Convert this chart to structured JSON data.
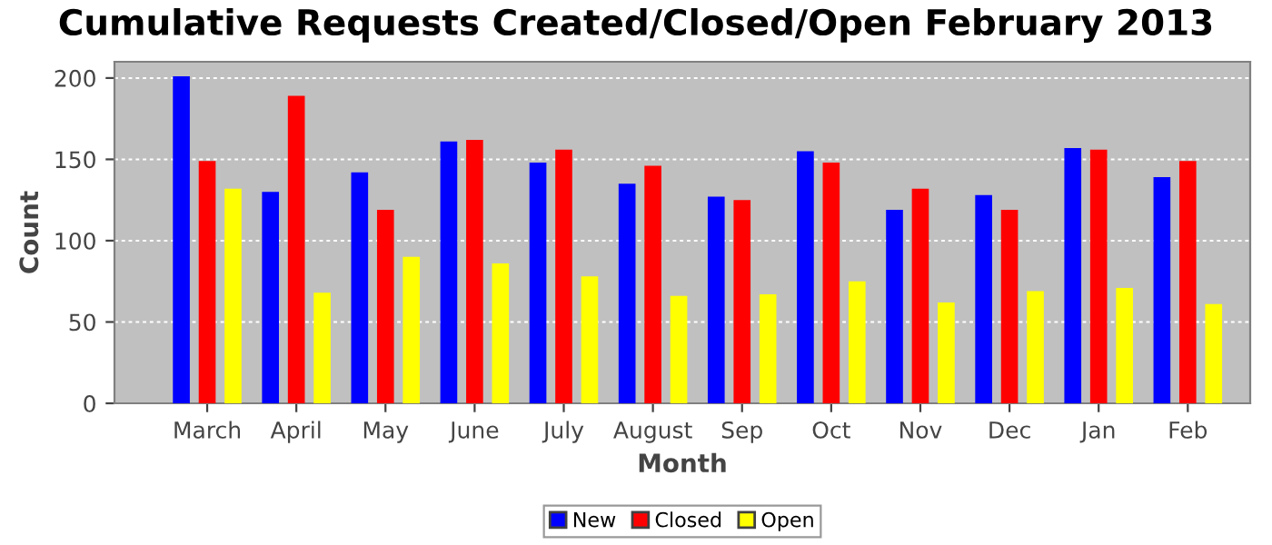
{
  "chart_data": {
    "type": "bar",
    "title": "Cumulative Requests Created/Closed/Open February 2013",
    "xlabel": "Month",
    "ylabel": "Count",
    "categories": [
      "March",
      "April",
      "May",
      "June",
      "July",
      "August",
      "Sep",
      "Oct",
      "Nov",
      "Dec",
      "Jan",
      "Feb"
    ],
    "series": [
      {
        "name": "New",
        "color": "#0000ff",
        "values": [
          201,
          130,
          142,
          161,
          148,
          135,
          127,
          155,
          119,
          128,
          157,
          139
        ]
      },
      {
        "name": "Closed",
        "color": "#ff0000",
        "values": [
          149,
          189,
          119,
          162,
          156,
          146,
          125,
          148,
          132,
          119,
          156,
          149
        ]
      },
      {
        "name": "Open",
        "color": "#ffff00",
        "values": [
          132,
          68,
          90,
          86,
          78,
          66,
          67,
          75,
          62,
          69,
          71,
          61
        ]
      }
    ],
    "ylim": [
      0,
      210
    ],
    "yticks": [
      0,
      50,
      100,
      150,
      200
    ],
    "grid": "y",
    "legend": "bottom"
  }
}
